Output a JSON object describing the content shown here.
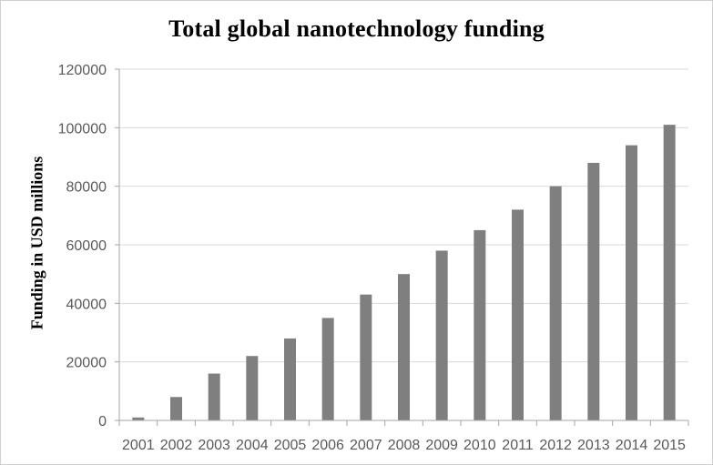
{
  "chart_data": {
    "type": "bar",
    "title": "Total global nanotechnology funding",
    "xlabel": "",
    "ylabel": "Funding in USD millions",
    "categories": [
      "2001",
      "2002",
      "2003",
      "2004",
      "2005",
      "2006",
      "2007",
      "2008",
      "2009",
      "2010",
      "2011",
      "2012",
      "2013",
      "2014",
      "2015"
    ],
    "values": [
      1000,
      8000,
      16000,
      22000,
      28000,
      35000,
      43000,
      50000,
      58000,
      65000,
      72000,
      80000,
      88000,
      94000,
      101000
    ],
    "ylim": [
      0,
      120000
    ],
    "yticks": [
      0,
      20000,
      40000,
      60000,
      80000,
      100000,
      120000
    ],
    "grid": "horizontal",
    "legend": "none",
    "colors": {
      "bar": "#7f7f7f",
      "grid": "#d9d9d9",
      "axis": "#a6a6a6",
      "tick_text": "#595959"
    }
  }
}
